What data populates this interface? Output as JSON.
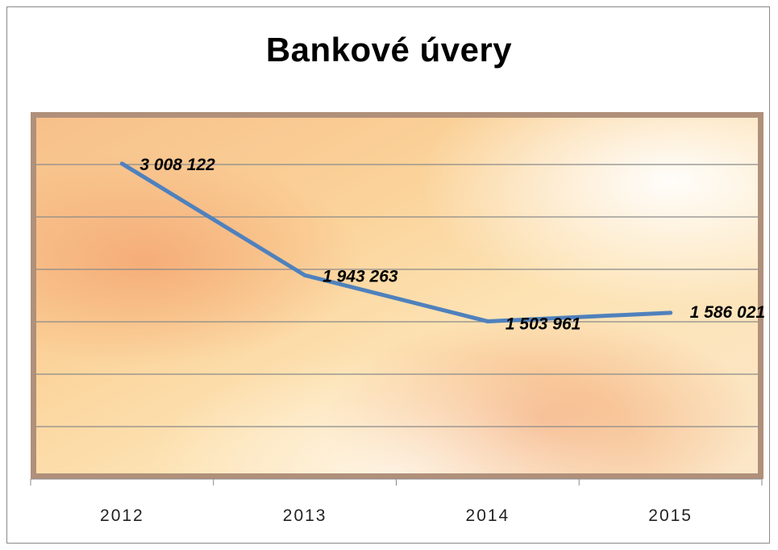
{
  "chart_data": {
    "type": "line",
    "title": "Bankové úvery",
    "categories": [
      "2012",
      "2013",
      "2014",
      "2015"
    ],
    "series": [
      {
        "values": [
          3008122,
          1943263,
          1503961,
          1586021
        ],
        "labels": [
          "3 008 122",
          "1 943 263",
          "1 503 961",
          "1 586 021"
        ]
      }
    ],
    "xlabel": "",
    "ylabel": "",
    "ylim": [
      0,
      3500000
    ],
    "grid": true,
    "colors": {
      "line": "#4f81bd",
      "gridline": "#8a8a8a"
    }
  }
}
